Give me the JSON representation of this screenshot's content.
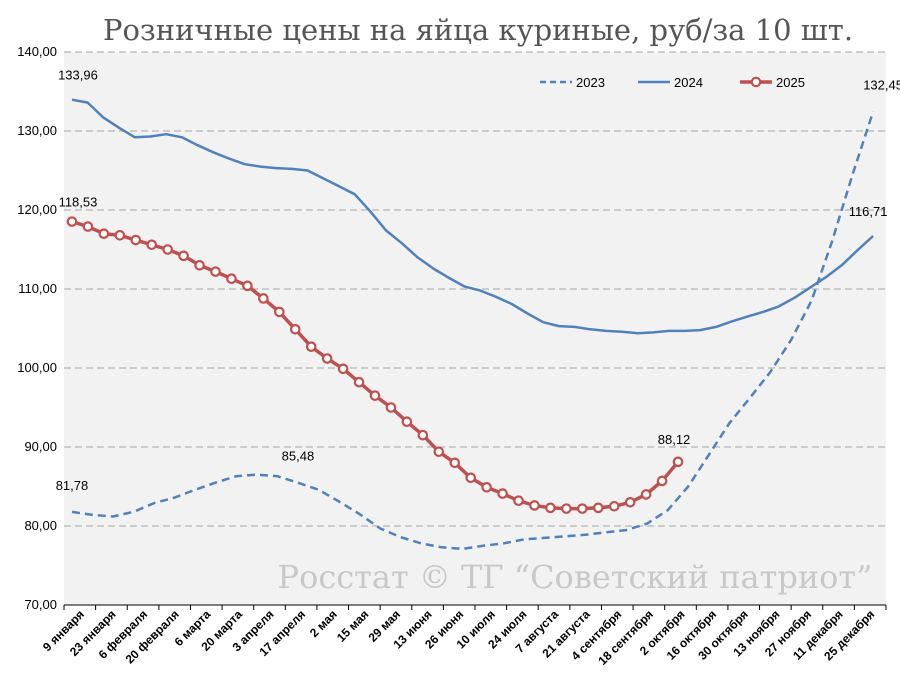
{
  "chart_data": {
    "type": "line",
    "title": "Розничные цены на яйца куриные, руб/за 10 шт.",
    "watermark": "Росстат © ТГ “Советский патриот”",
    "ylim": [
      70,
      140
    ],
    "yticks": [
      "70,00",
      "80,00",
      "90,00",
      "100,00",
      "110,00",
      "120,00",
      "130,00",
      "140,00"
    ],
    "grid": true,
    "legend_position": "top-right",
    "x_tick_labels": [
      "9 января",
      "23 января",
      "6 февраля",
      "20 февраля",
      "6 марта",
      "20 марта",
      "3 апреля",
      "17 апреля",
      "2 мая",
      "15 мая",
      "29 мая",
      "13 июня",
      "26 июня",
      "10 июля",
      "24 июля",
      "7 августа",
      "21 августа",
      "4 сентября",
      "18 сентября",
      "2 октября",
      "16 октября",
      "30 октября",
      "13 ноября",
      "27 ноября",
      "11 декабря",
      "25 декабря"
    ],
    "series": [
      {
        "name": "2023",
        "color": "#4f81bd",
        "style": "dashed",
        "values": [
          81.78,
          81.4,
          81.2,
          81.8,
          82.9,
          83.6,
          84.6,
          85.5,
          86.3,
          86.5,
          86.3,
          85.48,
          84.6,
          83.1,
          81.5,
          79.7,
          78.6,
          77.8,
          77.3,
          77.1,
          77.5,
          77.8,
          78.3,
          78.5,
          78.7,
          78.9,
          79.2,
          79.5,
          80.3,
          82.0,
          85.0,
          89.0,
          93.0,
          96.2,
          99.5,
          103.5,
          108.5,
          116.0,
          124.5,
          132.45
        ]
      },
      {
        "name": "2024",
        "color": "#4f81bd",
        "style": "solid",
        "values": [
          133.96,
          133.6,
          131.7,
          130.4,
          129.2,
          129.3,
          129.6,
          129.2,
          128.2,
          127.3,
          126.5,
          125.8,
          125.5,
          125.3,
          125.2,
          125.0,
          124.0,
          123.0,
          122.0,
          119.8,
          117.4,
          115.8,
          114.0,
          112.6,
          111.4,
          110.3,
          109.8,
          109.0,
          108.1,
          106.9,
          105.8,
          105.3,
          105.2,
          104.9,
          104.7,
          104.6,
          104.4,
          104.5,
          104.7,
          104.7,
          104.8,
          105.2,
          105.9,
          106.5,
          107.1,
          107.8,
          108.9,
          110.2,
          111.5,
          113.0,
          114.9,
          116.71
        ]
      },
      {
        "name": "2025",
        "color": "#c0504d",
        "style": "solid-markers",
        "values": [
          118.53,
          117.9,
          117.0,
          116.8,
          116.2,
          115.6,
          115.0,
          114.2,
          113.0,
          112.2,
          111.3,
          110.4,
          108.8,
          107.1,
          104.9,
          102.7,
          101.2,
          99.9,
          98.2,
          96.5,
          95.0,
          93.2,
          91.5,
          89.4,
          88.0,
          86.1,
          84.9,
          84.1,
          83.2,
          82.6,
          82.3,
          82.2,
          82.2,
          82.3,
          82.5,
          83.0,
          84.0,
          85.7,
          88.12
        ]
      }
    ],
    "annotations": [
      {
        "series": "2023",
        "index": 0,
        "text": "81,78"
      },
      {
        "series": "2023",
        "index": 11,
        "text": "85,48"
      },
      {
        "series": "2023",
        "index": 39,
        "text": "132,45"
      },
      {
        "series": "2024",
        "index": 0,
        "text": "133,96"
      },
      {
        "series": "2024",
        "index": 51,
        "text": "116,71"
      },
      {
        "series": "2025",
        "index": 0,
        "text": "118,53"
      },
      {
        "series": "2025",
        "index": 38,
        "text": "88,12"
      }
    ]
  }
}
